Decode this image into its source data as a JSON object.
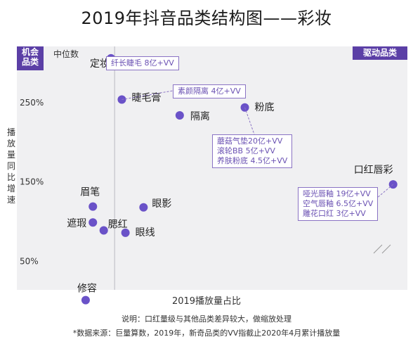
{
  "title": "2019年抖音品类结构图——彩妆",
  "badges": {
    "left": [
      "机会",
      "品类"
    ],
    "right": "驱动品类"
  },
  "median_label": "中位数",
  "note": "说明：口红量级与其他品类差异较大，做缩放处理",
  "source": "*数据来源：巨量算数，2019年，新奇品类的VV指截止2020年4月累计播放量",
  "colors": {
    "point": "#6a52c8",
    "accent": "#5b3fa6",
    "quadrant_bg": "#f0f0f2",
    "callout_text": "#6b52b3"
  },
  "callouts": [
    {
      "id": "c1",
      "lines": [
        "纤长睫毛 8亿+VV"
      ]
    },
    {
      "id": "c2",
      "lines": [
        "素颜隔离 4亿+VV"
      ]
    },
    {
      "id": "c3",
      "lines": [
        "蘑菇气垫20亿+VV",
        "滚轮BB 5亿+VV",
        "养肤粉底 4.5亿+VV"
      ]
    },
    {
      "id": "c4",
      "lines": [
        "哑光唇釉 19亿+VV",
        "空气唇釉 6.5亿+VV",
        "雕花口红 3亿+VV"
      ]
    }
  ],
  "chart_data": {
    "type": "scatter",
    "title": "2019年抖音品类结构图——彩妆",
    "xlabel": "2019播放量占比",
    "ylabel": "播放量同比增速",
    "y_ticks": [
      "250%",
      "150%",
      "50%"
    ],
    "y_tick_values": [
      250,
      150,
      50
    ],
    "x_scale": "relative (x axis has no tick labels)",
    "x_break": true,
    "ylim": [
      14,
      321
    ],
    "xlim": [
      0,
      100
    ],
    "median_x": 21,
    "grid": false,
    "points": [
      {
        "name": "定妆",
        "x": 20,
        "y": 306
      },
      {
        "name": "睫毛膏",
        "x": 23,
        "y": 254
      },
      {
        "name": "隔离",
        "x": 39,
        "y": 234
      },
      {
        "name": "粉底",
        "x": 57,
        "y": 244
      },
      {
        "name": "口红唇彩",
        "x": 98,
        "y": 147
      },
      {
        "name": "眉笔",
        "x": 15,
        "y": 119
      },
      {
        "name": "眼影",
        "x": 29,
        "y": 118
      },
      {
        "name": "遮瑕",
        "x": 15,
        "y": 99
      },
      {
        "name": "腮红",
        "x": 18,
        "y": 89
      },
      {
        "name": "眼线",
        "x": 24,
        "y": 86
      },
      {
        "name": "修容",
        "x": 13,
        "y": 1
      }
    ]
  }
}
